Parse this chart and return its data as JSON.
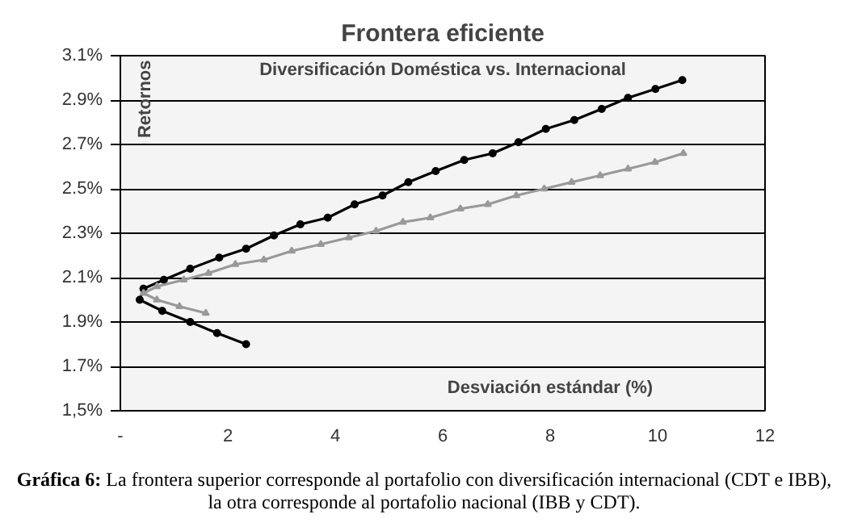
{
  "chart_data": {
    "type": "line",
    "title": "Frontera eficiente",
    "subtitle": "Diversificación Doméstica vs. Internacional",
    "xlabel": "Desviación estándar (%)",
    "ylabel": "Retornos",
    "annotations": [
      "Gráfica 6: La frontera superior corresponde al portafolio con diversificación internacional (CDT e IBB), la otra corresponde al portafolio nacional (IBB y CDT)."
    ],
    "xlim": [
      0,
      12
    ],
    "xticks": [
      {
        "value": 0,
        "label": "-"
      },
      2,
      4,
      6,
      8,
      10,
      12
    ],
    "ylim": [
      1.5,
      3.1
    ],
    "yticks": [
      {
        "value": 1.5,
        "label": "1,5%"
      },
      {
        "value": 1.7,
        "label": "1.7%"
      },
      {
        "value": 1.9,
        "label": "1.9%"
      },
      {
        "value": 2.1,
        "label": "2.1%"
      },
      {
        "value": 2.3,
        "label": "2.3%"
      },
      {
        "value": 2.5,
        "label": "2.5%"
      },
      {
        "value": 2.7,
        "label": "2.7%"
      },
      {
        "value": 2.9,
        "label": "2.9%"
      },
      {
        "value": 3.1,
        "label": "3.1%"
      }
    ],
    "grid": "y",
    "line_style": "solid",
    "series": [
      {
        "color": "#000000",
        "marker": "circle",
        "x": [
          2.34,
          1.8,
          1.3,
          0.78,
          0.36,
          0.43,
          0.81,
          1.3,
          1.84,
          2.34,
          2.86,
          3.35,
          3.86,
          4.36,
          4.88,
          5.36,
          5.87,
          6.4,
          6.93,
          7.41,
          7.92,
          8.45,
          8.96,
          9.45,
          9.96,
          10.46
        ],
        "values": [
          1.8,
          1.85,
          1.9,
          1.95,
          2.0,
          2.05,
          2.09,
          2.14,
          2.19,
          2.23,
          2.29,
          2.34,
          2.37,
          2.43,
          2.47,
          2.53,
          2.58,
          2.63,
          2.66,
          2.71,
          2.77,
          2.81,
          2.86,
          2.91,
          2.95,
          2.99
        ]
      },
      {
        "color": "#999999",
        "marker": "triangle",
        "x": [
          1.59,
          1.1,
          0.68,
          0.43,
          0.68,
          1.18,
          1.64,
          2.14,
          2.67,
          3.19,
          3.73,
          4.25,
          4.76,
          5.26,
          5.77,
          6.33,
          6.84,
          7.37,
          7.89,
          8.4,
          8.93,
          9.45,
          9.95,
          10.48
        ],
        "values": [
          1.94,
          1.97,
          2.0,
          2.03,
          2.06,
          2.09,
          2.12,
          2.16,
          2.18,
          2.22,
          2.25,
          2.28,
          2.31,
          2.35,
          2.37,
          2.41,
          2.43,
          2.47,
          2.5,
          2.53,
          2.56,
          2.59,
          2.62,
          2.66
        ]
      }
    ]
  }
}
